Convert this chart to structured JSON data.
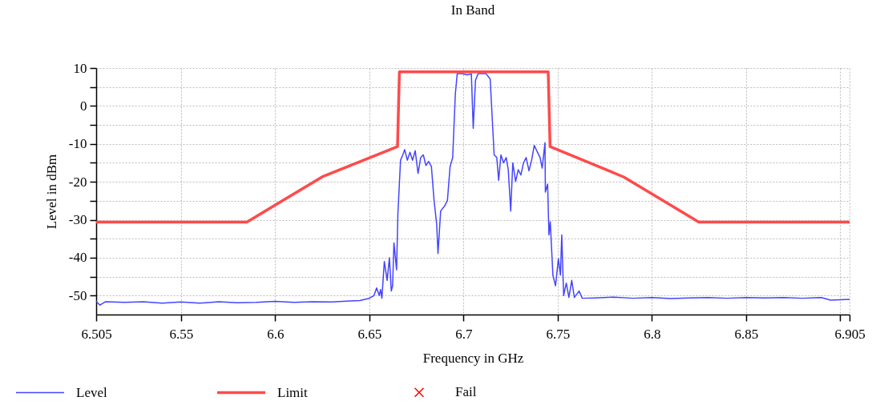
{
  "chart_data": {
    "type": "line",
    "title": "In Band",
    "xlabel": "Frequency in GHz",
    "ylabel": "Level in dBm",
    "xlim": [
      6.505,
      6.905
    ],
    "ylim": [
      -55,
      10
    ],
    "xticks": [
      6.505,
      6.55,
      6.6,
      6.65,
      6.7,
      6.75,
      6.8,
      6.85,
      {
        "value": 6.9,
        "label": null
      },
      6.905
    ],
    "yticks": [
      -50,
      {
        "value": -45,
        "label": null
      },
      -40,
      {
        "value": -35,
        "label": null
      },
      -30,
      {
        "value": -25,
        "label": null
      },
      -20,
      {
        "value": -15,
        "label": null
      },
      -10,
      {
        "value": -5,
        "label": null
      },
      0,
      {
        "value": 5,
        "label": null
      },
      10
    ],
    "grid": true,
    "legend": "bottom",
    "line_style": "solid",
    "series": [
      {
        "name": "Level",
        "color": "#4444ff",
        "x": [
          6.505,
          6.507,
          6.51,
          6.52,
          6.53,
          6.54,
          6.55,
          6.56,
          6.57,
          6.58,
          6.59,
          6.6,
          6.61,
          6.62,
          6.63,
          6.64,
          6.645,
          6.6496,
          6.6525,
          6.6539,
          6.6553,
          6.656,
          6.6567,
          6.658,
          6.6595,
          6.6607,
          6.6617,
          6.6624,
          6.6631,
          6.6645,
          6.6652,
          6.6666,
          6.6678,
          6.6688,
          6.6702,
          6.6716,
          6.673,
          6.6744,
          6.6759,
          6.6773,
          6.6787,
          6.6801,
          6.6815,
          6.683,
          6.6844,
          6.6858,
          6.6865,
          6.6879,
          6.6901,
          6.6915,
          6.6929,
          6.6943,
          6.6957,
          6.6967,
          6.6993,
          6.7021,
          6.7042,
          6.7052,
          6.7064,
          6.7078,
          6.712,
          6.7142,
          6.7163,
          6.7177,
          6.7187,
          6.7199,
          6.7213,
          6.7227,
          6.7238,
          6.7251,
          6.7262,
          6.7277,
          6.7291,
          6.7305,
          6.7319,
          6.7333,
          6.7348,
          6.7362,
          6.7376,
          6.7393,
          6.7407,
          6.7418,
          6.7433,
          6.7435,
          6.7447,
          6.7454,
          6.7461,
          6.7475,
          6.7489,
          6.7504,
          6.7515,
          6.7522,
          6.7532,
          6.7546,
          6.756,
          6.7575,
          6.7589,
          6.7614,
          6.7631,
          6.77,
          6.78,
          6.79,
          6.8,
          6.81,
          6.82,
          6.83,
          6.84,
          6.85,
          6.86,
          6.87,
          6.88,
          6.89,
          6.895,
          6.905
        ],
        "values": [
          -51.5,
          -52.5,
          -51.6,
          -51.8,
          -51.6,
          -52.0,
          -51.7,
          -52.0,
          -51.6,
          -51.9,
          -51.8,
          -51.5,
          -51.8,
          -51.6,
          -51.7,
          -51.4,
          -51.3,
          -50.8,
          -50,
          -48,
          -50,
          -48.4,
          -50.7,
          -41,
          -46,
          -40,
          -48.8,
          -47.4,
          -36.1,
          -43.2,
          -28.4,
          -14.3,
          -12.9,
          -11.5,
          -14.3,
          -12.2,
          -14.3,
          -11.8,
          -17.8,
          -13.6,
          -12.9,
          -15.7,
          -14.6,
          -16.0,
          -24.9,
          -31.2,
          -38.9,
          -27.7,
          -26.3,
          -24.9,
          -16.0,
          -13.6,
          3.2,
          8.5,
          8.5,
          8.2,
          8.5,
          -5.9,
          6.8,
          8.5,
          8.5,
          7.1,
          -12.9,
          -13.6,
          -19.6,
          -12.9,
          -15,
          -13.6,
          -16.8,
          -27.7,
          -15,
          -19.9,
          -16.8,
          -18.2,
          -15,
          -13.6,
          -17.1,
          -14.3,
          -10.4,
          -12.2,
          -13.6,
          -16.4,
          -9.7,
          -22.7,
          -20.6,
          -34.0,
          -30.5,
          -44.6,
          -47.4,
          -40.3,
          -44.6,
          -34.0,
          -50,
          -46.7,
          -50.5,
          -46,
          -50.5,
          -48.8,
          -50.7,
          -50.6,
          -50.4,
          -50.7,
          -50.5,
          -50.8,
          -50.6,
          -50.5,
          -50.7,
          -50.5,
          -50.6,
          -50.5,
          -50.7,
          -50.5,
          -51.2,
          -51.0
        ]
      },
      {
        "name": "Limit",
        "color": "#ff4a4a",
        "x": [
          6.505,
          6.585,
          6.625,
          6.665,
          6.666,
          6.745,
          6.746,
          6.785,
          6.825,
          6.905
        ],
        "values": [
          -30.6,
          -30.6,
          -18.7,
          -10.7,
          9,
          9,
          -10.7,
          -18.7,
          -30.6,
          -30.6
        ]
      },
      {
        "name": "Fail",
        "color": "#ff0000",
        "type": "scatter",
        "marker": "cross"
      }
    ]
  }
}
